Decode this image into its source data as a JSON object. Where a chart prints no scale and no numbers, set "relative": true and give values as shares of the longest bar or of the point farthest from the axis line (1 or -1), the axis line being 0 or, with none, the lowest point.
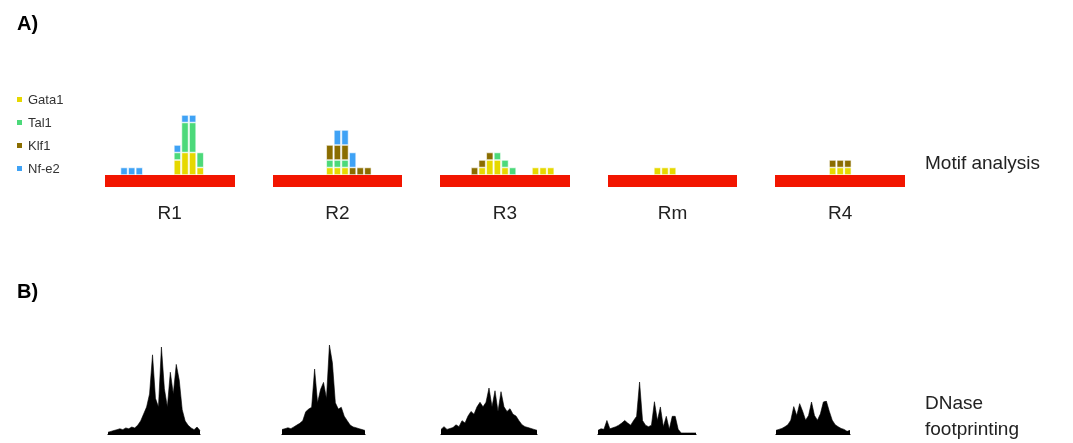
{
  "chart_data": [
    {
      "type": "bar",
      "title": "A)",
      "stacked": true,
      "relative": true,
      "legend": "left",
      "annotations": [
        "Motif analysis"
      ],
      "categories": [
        null,
        null,
        null,
        null,
        null,
        null,
        null,
        null,
        "R1",
        null,
        null,
        null,
        null,
        null,
        null,
        null,
        null,
        null,
        null,
        null,
        null,
        null,
        null,
        null,
        null,
        null,
        null,
        null,
        null,
        null,
        "R2",
        null,
        null,
        null,
        null,
        null,
        null,
        null,
        null,
        null,
        null,
        null,
        null,
        null,
        null,
        null,
        null,
        null,
        null,
        null,
        null,
        null,
        "R3",
        null,
        null,
        null,
        null,
        null,
        null,
        null,
        null,
        null,
        null,
        null,
        null,
        null,
        null,
        null,
        null,
        null,
        null,
        null,
        null,
        null,
        "Rm",
        null,
        null,
        null,
        null,
        null,
        null,
        null,
        null,
        null,
        null,
        null,
        null,
        null,
        null,
        null,
        null,
        null,
        null,
        null,
        null,
        null,
        "R4",
        null,
        null,
        null,
        null,
        null,
        null,
        null,
        null
      ],
      "series": [
        {
          "name": "Gata1",
          "color": "#e6d800",
          "values": [
            null,
            null,
            null,
            null,
            null,
            null,
            null,
            null,
            null,
            0.25,
            0.375,
            0.375,
            0.125,
            null,
            null,
            null,
            null,
            null,
            null,
            null,
            null,
            null,
            null,
            null,
            null,
            null,
            null,
            null,
            null,
            0.125,
            0.125,
            0.125,
            null,
            null,
            null,
            null,
            null,
            null,
            null,
            null,
            null,
            null,
            null,
            null,
            null,
            null,
            null,
            null,
            null,
            0.125,
            0.25,
            0.25,
            0.125,
            null,
            null,
            null,
            0.125,
            0.125,
            0.125,
            null,
            null,
            null,
            null,
            null,
            null,
            null,
            null,
            null,
            null,
            null,
            null,
            null,
            0.125,
            0.125,
            0.125,
            null,
            null,
            null,
            null,
            null,
            null,
            null,
            null,
            null,
            null,
            null,
            null,
            null,
            null,
            null,
            null,
            null,
            null,
            null,
            null,
            0.125,
            0.125,
            0.125,
            null,
            null,
            null,
            null,
            null,
            null,
            null
          ]
        },
        {
          "name": "Tal1",
          "color": "#4cd97a",
          "values": [
            null,
            null,
            null,
            null,
            null,
            null,
            null,
            null,
            null,
            0.125,
            0.5,
            0.5,
            0.25,
            null,
            null,
            null,
            null,
            null,
            null,
            null,
            null,
            null,
            null,
            null,
            null,
            null,
            null,
            null,
            null,
            0.125,
            0.125,
            0.125,
            null,
            null,
            null,
            null,
            null,
            null,
            null,
            null,
            null,
            null,
            null,
            null,
            null,
            null,
            null,
            null,
            null,
            null,
            null,
            0.125,
            0.125,
            0.125,
            null,
            null,
            null,
            null,
            null,
            null,
            null,
            null,
            null,
            null,
            null,
            null,
            null,
            null,
            null,
            null,
            null,
            null,
            null,
            null,
            null,
            null,
            null,
            null,
            null,
            null,
            null,
            null,
            null,
            null,
            null,
            null,
            null,
            null,
            null,
            null,
            null,
            null,
            null,
            null,
            null,
            null,
            null,
            null,
            null,
            null,
            null,
            null,
            null,
            null,
            null
          ]
        },
        {
          "name": "Klf1",
          "color": "#8a6d00",
          "values": [
            null,
            null,
            null,
            null,
            null,
            null,
            null,
            null,
            null,
            null,
            null,
            null,
            null,
            null,
            null,
            null,
            null,
            null,
            null,
            null,
            null,
            null,
            null,
            null,
            null,
            null,
            null,
            null,
            null,
            0.25,
            0.25,
            0.25,
            0.125,
            0.125,
            0.125,
            null,
            null,
            null,
            null,
            null,
            null,
            null,
            null,
            null,
            null,
            null,
            null,
            null,
            0.125,
            0.125,
            0.125,
            null,
            null,
            null,
            null,
            null,
            null,
            null,
            null,
            null,
            null,
            null,
            null,
            null,
            null,
            null,
            null,
            null,
            null,
            null,
            null,
            null,
            null,
            null,
            null,
            null,
            null,
            null,
            null,
            null,
            null,
            null,
            null,
            null,
            null,
            null,
            null,
            null,
            null,
            null,
            null,
            null,
            null,
            null,
            null,
            0.125,
            0.125,
            0.125,
            null,
            null,
            null,
            null,
            null,
            null,
            null
          ]
        },
        {
          "name": "Nf-e2",
          "color": "#3fa2f5",
          "values": [
            null,
            null,
            0.125,
            0.125,
            0.125,
            null,
            null,
            null,
            null,
            0.125,
            0.125,
            0.125,
            null,
            null,
            null,
            null,
            null,
            null,
            null,
            null,
            null,
            null,
            null,
            null,
            null,
            null,
            null,
            null,
            null,
            null,
            0.25,
            0.25,
            0.25,
            null,
            null,
            null,
            null,
            null,
            null,
            null,
            null,
            null,
            null,
            null,
            null,
            null,
            null,
            null,
            null,
            null,
            null,
            null,
            null,
            null,
            null,
            null,
            null,
            null,
            null,
            null,
            null,
            null,
            null,
            null,
            null,
            null,
            null,
            null,
            null,
            null,
            null,
            null,
            null,
            null,
            null,
            null,
            null,
            null,
            null,
            null,
            null,
            null,
            null,
            null,
            null,
            null,
            null,
            null,
            null,
            null,
            null,
            null,
            null,
            null,
            null,
            null,
            null,
            null,
            null,
            null,
            null,
            null,
            null,
            null,
            null
          ]
        }
      ]
    },
    {
      "type": "area",
      "title": "B)",
      "relative": true,
      "categories": [
        null,
        null,
        null,
        null,
        null,
        null,
        null,
        null,
        null,
        null,
        null,
        null,
        null,
        null,
        null,
        null,
        null,
        null,
        null,
        null,
        null,
        null,
        null,
        null,
        null,
        null,
        null,
        null,
        null,
        null,
        null,
        null
      ],
      "series": [
        {
          "color": "#000000",
          "values": [
            0.02,
            0.03,
            0.04,
            0.05,
            0.06,
            0.05,
            0.07,
            0.06,
            0.08,
            0.07,
            0.1,
            0.15,
            0.23,
            0.31,
            0.46,
            0.91,
            0.41,
            0.31,
            1,
            0.52,
            0.31,
            0.71,
            0.46,
            0.8,
            0.62,
            0.28,
            0.15,
            0.1,
            0.07,
            0.05,
            0.08,
            0.04
          ]
        }
      ]
    },
    {
      "type": "area",
      "relative": true,
      "categories": [
        null,
        null,
        null,
        null,
        null,
        null,
        null,
        null,
        null,
        null,
        null,
        null,
        null,
        null,
        null,
        null,
        null,
        null,
        null,
        null,
        null,
        null,
        null,
        null,
        null,
        null,
        null,
        null,
        null
      ],
      "series": [
        {
          "color": "#000000",
          "values": [
            0.05,
            0.06,
            0.07,
            0.06,
            0.08,
            0.1,
            0.12,
            0.15,
            0.25,
            0.28,
            0.3,
            0.73,
            0.35,
            0.5,
            0.58,
            0.4,
            1,
            0.8,
            0.35,
            0.28,
            0.3,
            0.2,
            0.15,
            0.1,
            0.08,
            0.07,
            0.06,
            0.05,
            0.04
          ]
        }
      ]
    },
    {
      "type": "area",
      "relative": true,
      "categories": [
        null,
        null,
        null,
        null,
        null,
        null,
        null,
        null,
        null,
        null,
        null,
        null,
        null,
        null,
        null,
        null,
        null,
        null,
        null,
        null,
        null,
        null,
        null,
        null,
        null,
        null,
        null,
        null,
        null,
        null,
        null,
        null,
        null
      ],
      "series": [
        {
          "color": "#000000",
          "values": [
            0.1,
            0.16,
            0.1,
            0.12,
            0.14,
            0.2,
            0.16,
            0.29,
            0.24,
            0.39,
            0.49,
            0.43,
            0.59,
            0.69,
            0.59,
            0.69,
            1,
            0.59,
            0.94,
            0.49,
            0.92,
            0.59,
            0.49,
            0.55,
            0.43,
            0.39,
            0.29,
            0.2,
            0.16,
            0.14,
            0.12,
            0.1,
            0.08
          ]
        }
      ]
    },
    {
      "type": "area",
      "relative": true,
      "categories": [
        null,
        null,
        null,
        null,
        null,
        null,
        null,
        null,
        null,
        null,
        null,
        null,
        null,
        null,
        null,
        null,
        null,
        null,
        null,
        null,
        null,
        null,
        null,
        null,
        null,
        null,
        null,
        null,
        null,
        null,
        null,
        null,
        null,
        null
      ],
      "series": [
        {
          "color": "#000000",
          "values": [
            0.07,
            0.1,
            0.09,
            0.26,
            0.1,
            0.12,
            0.14,
            0.17,
            0.21,
            0.26,
            0.21,
            0.17,
            0.26,
            0.34,
            1,
            0.26,
            0.17,
            0.14,
            0.17,
            0.62,
            0.26,
            0.52,
            0.14,
            0.34,
            0.09,
            0.34,
            0.34,
            0.09,
            0.02,
            0.02,
            0.02,
            0.02,
            0.02,
            0.02
          ]
        }
      ]
    },
    {
      "type": "area",
      "relative": true,
      "annotations": [
        "DNase footprinting"
      ],
      "categories": [
        null,
        null,
        null,
        null,
        null,
        null,
        null,
        null,
        null,
        null,
        null,
        null,
        null,
        null,
        null,
        null,
        null,
        null,
        null,
        null,
        null,
        null,
        null,
        null,
        null,
        null
      ],
      "series": [
        {
          "color": "#000000",
          "values": [
            0.11,
            0.14,
            0.17,
            0.22,
            0.28,
            0.42,
            0.83,
            0.56,
            0.92,
            0.69,
            0.42,
            0.56,
            0.97,
            0.56,
            0.42,
            0.61,
            0.97,
            1,
            0.69,
            0.42,
            0.28,
            0.22,
            0.17,
            0.14,
            0.08,
            0.11
          ]
        }
      ]
    }
  ]
}
